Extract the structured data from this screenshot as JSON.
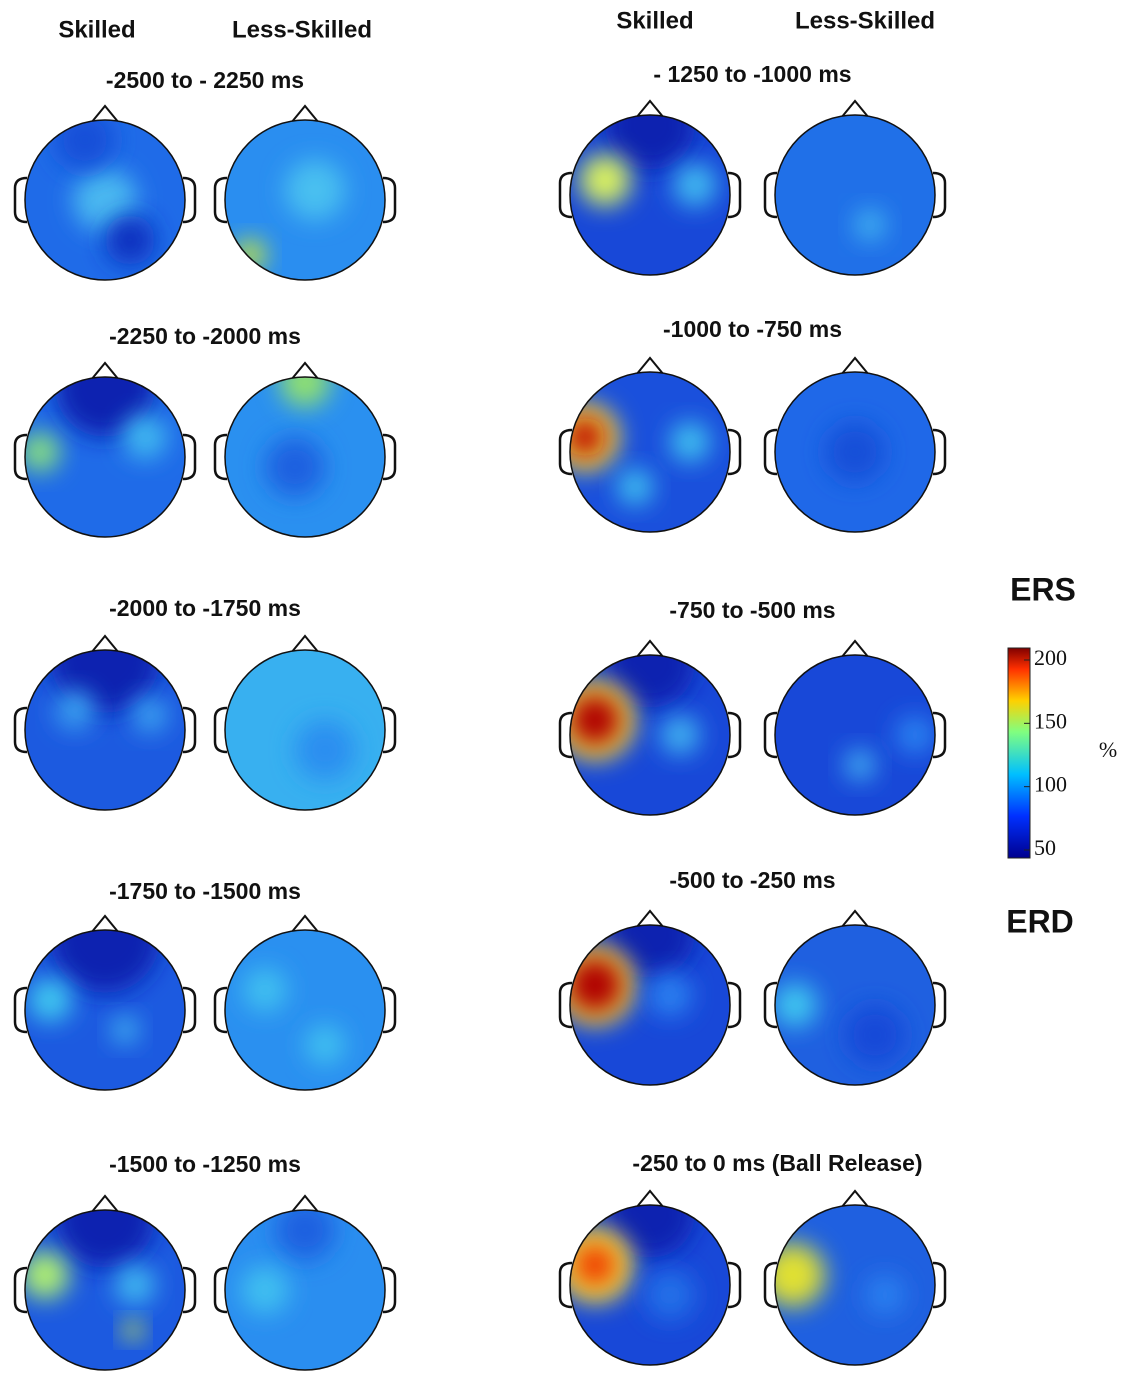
{
  "columns": {
    "left": [
      "Skilled",
      "Less-Skilled"
    ],
    "right": [
      "Skilled",
      "Less-Skilled"
    ]
  },
  "panels": {
    "left": [
      {
        "title": "-2500 to - 2250 ms"
      },
      {
        "title": "-2250  to -2000 ms"
      },
      {
        "title": "-2000 to -1750 ms"
      },
      {
        "title": "-1750 to -1500 ms"
      },
      {
        "title": "-1500 to -1250 ms"
      }
    ],
    "right": [
      {
        "title": "- 1250 to -1000 ms"
      },
      {
        "title": "-1000 to -750 ms"
      },
      {
        "title": "-750 to -500 ms"
      },
      {
        "title": "-500 to -250 ms"
      },
      {
        "title": "-250 to 0 ms (Ball Release)"
      }
    ]
  },
  "colorbar": {
    "top_label": "ERS",
    "bottom_label": "ERD",
    "unit": "%",
    "ticks": [
      200,
      150,
      100,
      50
    ]
  }
}
